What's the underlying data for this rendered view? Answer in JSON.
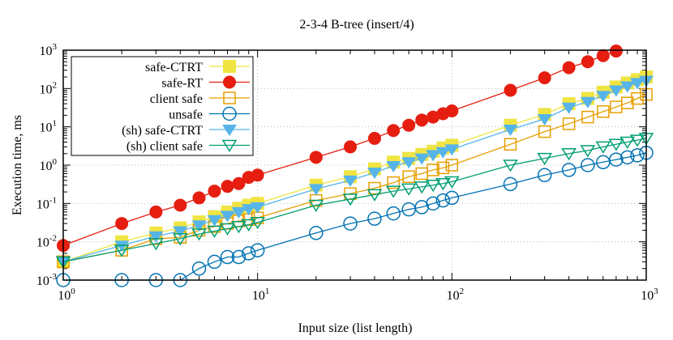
{
  "chart_data": {
    "type": "line",
    "title": "2-3-4 B-tree (insert/4)",
    "xlabel": "Input size (list length)",
    "ylabel": "Execution time, ms",
    "xscale": "log",
    "yscale": "log",
    "xlim": [
      1,
      1000
    ],
    "ylim": [
      0.001,
      1000
    ],
    "x_tick_exponents": [
      0,
      1,
      2,
      3
    ],
    "y_tick_exponents": [
      -3,
      -2,
      -1,
      0,
      1,
      2,
      3
    ],
    "tick_base": "10",
    "grid": true,
    "legend_placement": "top-left",
    "x": [
      1,
      2,
      3,
      4,
      5,
      6,
      7,
      8,
      9,
      10,
      20,
      30,
      40,
      50,
      60,
      70,
      80,
      90,
      100,
      200,
      300,
      400,
      500,
      600,
      700,
      800,
      900,
      1000
    ],
    "series": [
      {
        "name": "safe-CTRT",
        "color": "#f0e442",
        "marker": "filled-square",
        "values": [
          0.003,
          0.01,
          0.017,
          0.023,
          0.033,
          0.045,
          0.06,
          0.075,
          0.09,
          0.1,
          0.3,
          0.5,
          0.8,
          1.2,
          1.5,
          1.9,
          2.3,
          2.8,
          3.3,
          11,
          21,
          40,
          55,
          80,
          110,
          140,
          170,
          200
        ]
      },
      {
        "name": "safe-RT",
        "color": "#e51e10",
        "marker": "filled-circle",
        "values": [
          0.008,
          0.03,
          0.06,
          0.09,
          0.14,
          0.21,
          0.28,
          0.33,
          0.48,
          0.55,
          1.6,
          3,
          5,
          8,
          11,
          15,
          18,
          22,
          26,
          90,
          190,
          350,
          500,
          720,
          950,
          null,
          null,
          null
        ]
      },
      {
        "name": "client safe",
        "color": "#e69f00",
        "marker": "open-square",
        "values": [
          0.003,
          0.006,
          0.012,
          0.013,
          0.02,
          0.025,
          0.03,
          0.035,
          0.038,
          0.042,
          0.12,
          0.18,
          0.25,
          0.35,
          0.5,
          0.6,
          0.75,
          0.85,
          1.0,
          3.5,
          7.5,
          12,
          18,
          25,
          33,
          42,
          55,
          70
        ]
      },
      {
        "name": "unsafe",
        "color": "#0072b2",
        "marker": "open-circle",
        "values": [
          0.001,
          0.001,
          0.001,
          0.001,
          0.002,
          0.003,
          0.004,
          0.004,
          0.005,
          0.006,
          0.017,
          0.03,
          0.04,
          0.055,
          0.07,
          0.08,
          0.1,
          0.12,
          0.14,
          0.32,
          0.55,
          0.75,
          1.0,
          1.2,
          1.4,
          1.6,
          1.8,
          2.1
        ]
      },
      {
        "name": "(sh) safe-CTRT",
        "color": "#56b4e9",
        "marker": "filled-triangle-down",
        "values": [
          0.003,
          0.008,
          0.014,
          0.019,
          0.027,
          0.037,
          0.048,
          0.06,
          0.072,
          0.08,
          0.24,
          0.4,
          0.64,
          0.95,
          1.2,
          1.5,
          1.85,
          2.2,
          2.6,
          8.5,
          16,
          32,
          45,
          65,
          90,
          115,
          140,
          160
        ]
      },
      {
        "name": "(sh) client safe",
        "color": "#009e73",
        "marker": "open-triangle-down",
        "values": [
          0.003,
          0.006,
          0.009,
          0.012,
          0.016,
          0.019,
          0.022,
          0.025,
          0.028,
          0.032,
          0.09,
          0.13,
          0.17,
          0.21,
          0.24,
          0.27,
          0.3,
          0.33,
          0.37,
          1.0,
          1.5,
          2.0,
          2.4,
          3.0,
          3.5,
          4.0,
          4.5,
          5.0
        ]
      }
    ]
  }
}
